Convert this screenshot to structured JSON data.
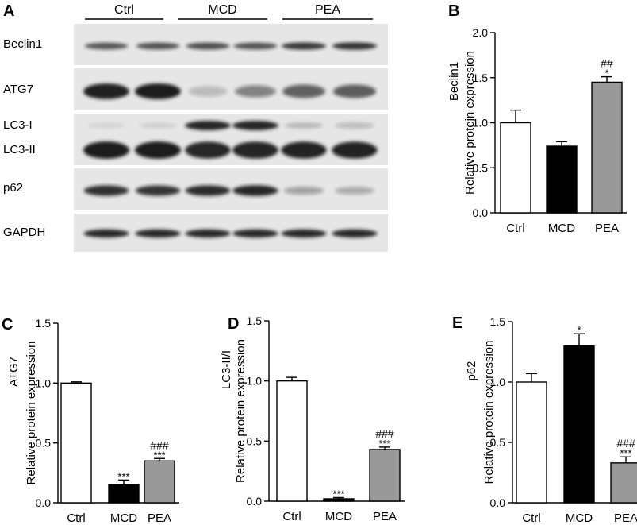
{
  "blot": {
    "panel_letter": "A",
    "groups": [
      "Ctrl",
      "MCD",
      "PEA"
    ],
    "rows": [
      {
        "label": "Beclin1",
        "lanes": [
          0.7,
          0.72,
          0.74,
          0.72,
          0.84,
          0.86
        ]
      },
      {
        "label": "ATG7",
        "lanes": [
          0.98,
          1.0,
          0.22,
          0.48,
          0.66,
          0.68
        ]
      },
      {
        "label": "LC3-I",
        "lanes": [
          0.08,
          0.1,
          0.96,
          0.96,
          0.2,
          0.22
        ]
      },
      {
        "label": "LC3-II",
        "lanes": [
          1.0,
          1.0,
          0.95,
          0.96,
          0.94,
          0.94
        ]
      },
      {
        "label": "p62",
        "lanes": [
          0.88,
          0.86,
          0.9,
          0.92,
          0.34,
          0.3
        ]
      },
      {
        "label": "GAPDH",
        "lanes": [
          0.92,
          0.92,
          0.92,
          0.92,
          0.92,
          0.92
        ]
      }
    ]
  },
  "colors": {
    "bar_ctrl": "#ffffff",
    "bar_mcd": "#000000",
    "bar_pea": "#999999",
    "band": "#1a1a1a"
  },
  "chart_data": [
    {
      "panel": "B",
      "type": "bar",
      "title": "",
      "xlabel": "",
      "ylabel": "Relative protein expression",
      "protein": "Beclin1",
      "categories": [
        "Ctrl",
        "MCD",
        "PEA"
      ],
      "values": [
        1.0,
        0.74,
        1.45
      ],
      "errors": [
        0.14,
        0.05,
        0.06
      ],
      "annotations": [
        [],
        [],
        [
          "*",
          "##"
        ]
      ],
      "ylim": [
        0,
        2.0
      ],
      "yticks": [
        "0.0",
        "0.5",
        "1.0",
        "1.5",
        "2.0"
      ]
    },
    {
      "panel": "C",
      "type": "bar",
      "title": "",
      "xlabel": "",
      "ylabel": "Relative protein expression",
      "protein": "ATG7",
      "categories": [
        "Ctrl",
        "MCD",
        "PEA"
      ],
      "values": [
        1.0,
        0.15,
        0.35
      ],
      "errors": [
        0.01,
        0.04,
        0.02
      ],
      "annotations": [
        [],
        [
          "***"
        ],
        [
          "***",
          "###"
        ]
      ],
      "ylim": [
        0,
        1.5
      ],
      "yticks": [
        "0.0",
        "0.5",
        "1.0",
        "1.5"
      ]
    },
    {
      "panel": "D",
      "type": "bar",
      "title": "",
      "xlabel": "",
      "ylabel": "Relative protein expression",
      "protein": "LC3-II/I",
      "categories": [
        "Ctrl",
        "MCD",
        "PEA"
      ],
      "values": [
        1.0,
        0.02,
        0.43
      ],
      "errors": [
        0.03,
        0.01,
        0.02
      ],
      "annotations": [
        [],
        [
          "***"
        ],
        [
          "***",
          "###"
        ]
      ],
      "ylim": [
        0,
        1.5
      ],
      "yticks": [
        "0.0",
        "0.5",
        "1.0",
        "1.5"
      ]
    },
    {
      "panel": "E",
      "type": "bar",
      "title": "",
      "xlabel": "",
      "ylabel": "Relative protein expression",
      "protein": "p62",
      "categories": [
        "Ctrl",
        "MCD",
        "PEA"
      ],
      "values": [
        1.0,
        1.3,
        0.33
      ],
      "errors": [
        0.07,
        0.1,
        0.05
      ],
      "annotations": [
        [],
        [
          "*"
        ],
        [
          "***",
          "###"
        ]
      ],
      "ylim": [
        0,
        1.5
      ],
      "yticks": [
        "0.0",
        "0.5",
        "1.0",
        "1.5"
      ]
    }
  ]
}
